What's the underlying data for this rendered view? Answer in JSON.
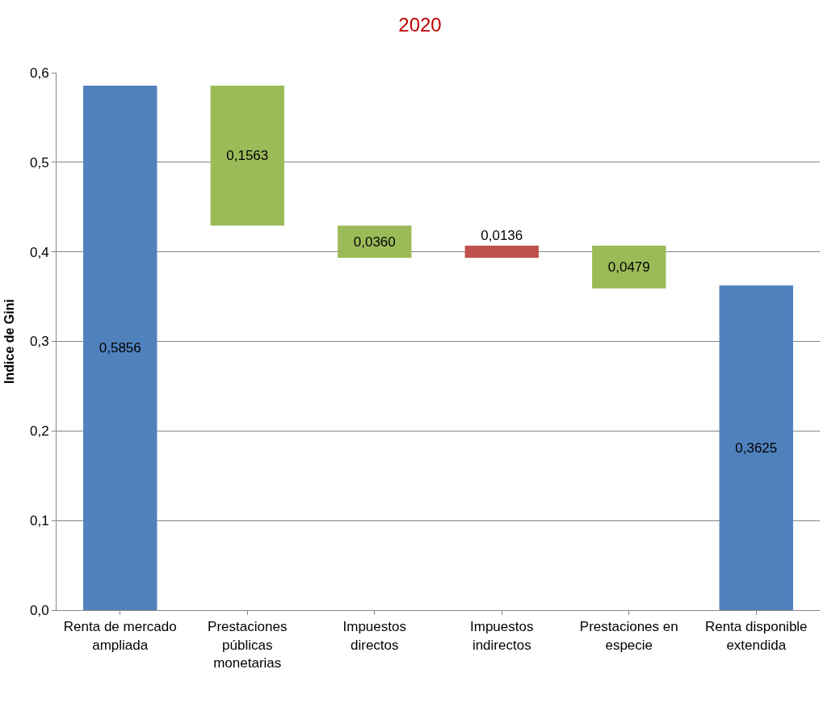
{
  "chart_data": {
    "type": "bar",
    "title": "2020",
    "ylabel": "Indice de Gini",
    "categories": [
      "Renta de mercado ampliada",
      "Prestaciones públicas monetarias",
      "Impuestos directos",
      "Impuestos indirectos",
      "Prestaciones en especie",
      "Renta disponible extendida"
    ],
    "values": [
      0.5856,
      0.1563,
      0.036,
      0.0136,
      0.0479,
      0.3625
    ],
    "base": [
      0,
      0.4293,
      0.3933,
      0.3933,
      0.359,
      0
    ],
    "colors": [
      "#4f81bd",
      "#9bbb59",
      "#9bbb59",
      "#c0504d",
      "#9bbb59",
      "#4f81bd"
    ],
    "value_labels": [
      "0,5856",
      "0,1563",
      "0,0360",
      "0,0136",
      "0,0479",
      "0,3625"
    ],
    "ylim": [
      0,
      0.6
    ],
    "yticks": [
      {
        "value": 0,
        "label": "0,0"
      },
      {
        "value": 0.1,
        "label": "0,1"
      },
      {
        "value": 0.2,
        "label": "0,2"
      },
      {
        "value": 0.3,
        "label": "0,3"
      },
      {
        "value": 0.4,
        "label": "0,4"
      },
      {
        "value": 0.5,
        "label": "0,5"
      },
      {
        "value": 0.6,
        "label": "0,6"
      }
    ],
    "grid": "y"
  }
}
